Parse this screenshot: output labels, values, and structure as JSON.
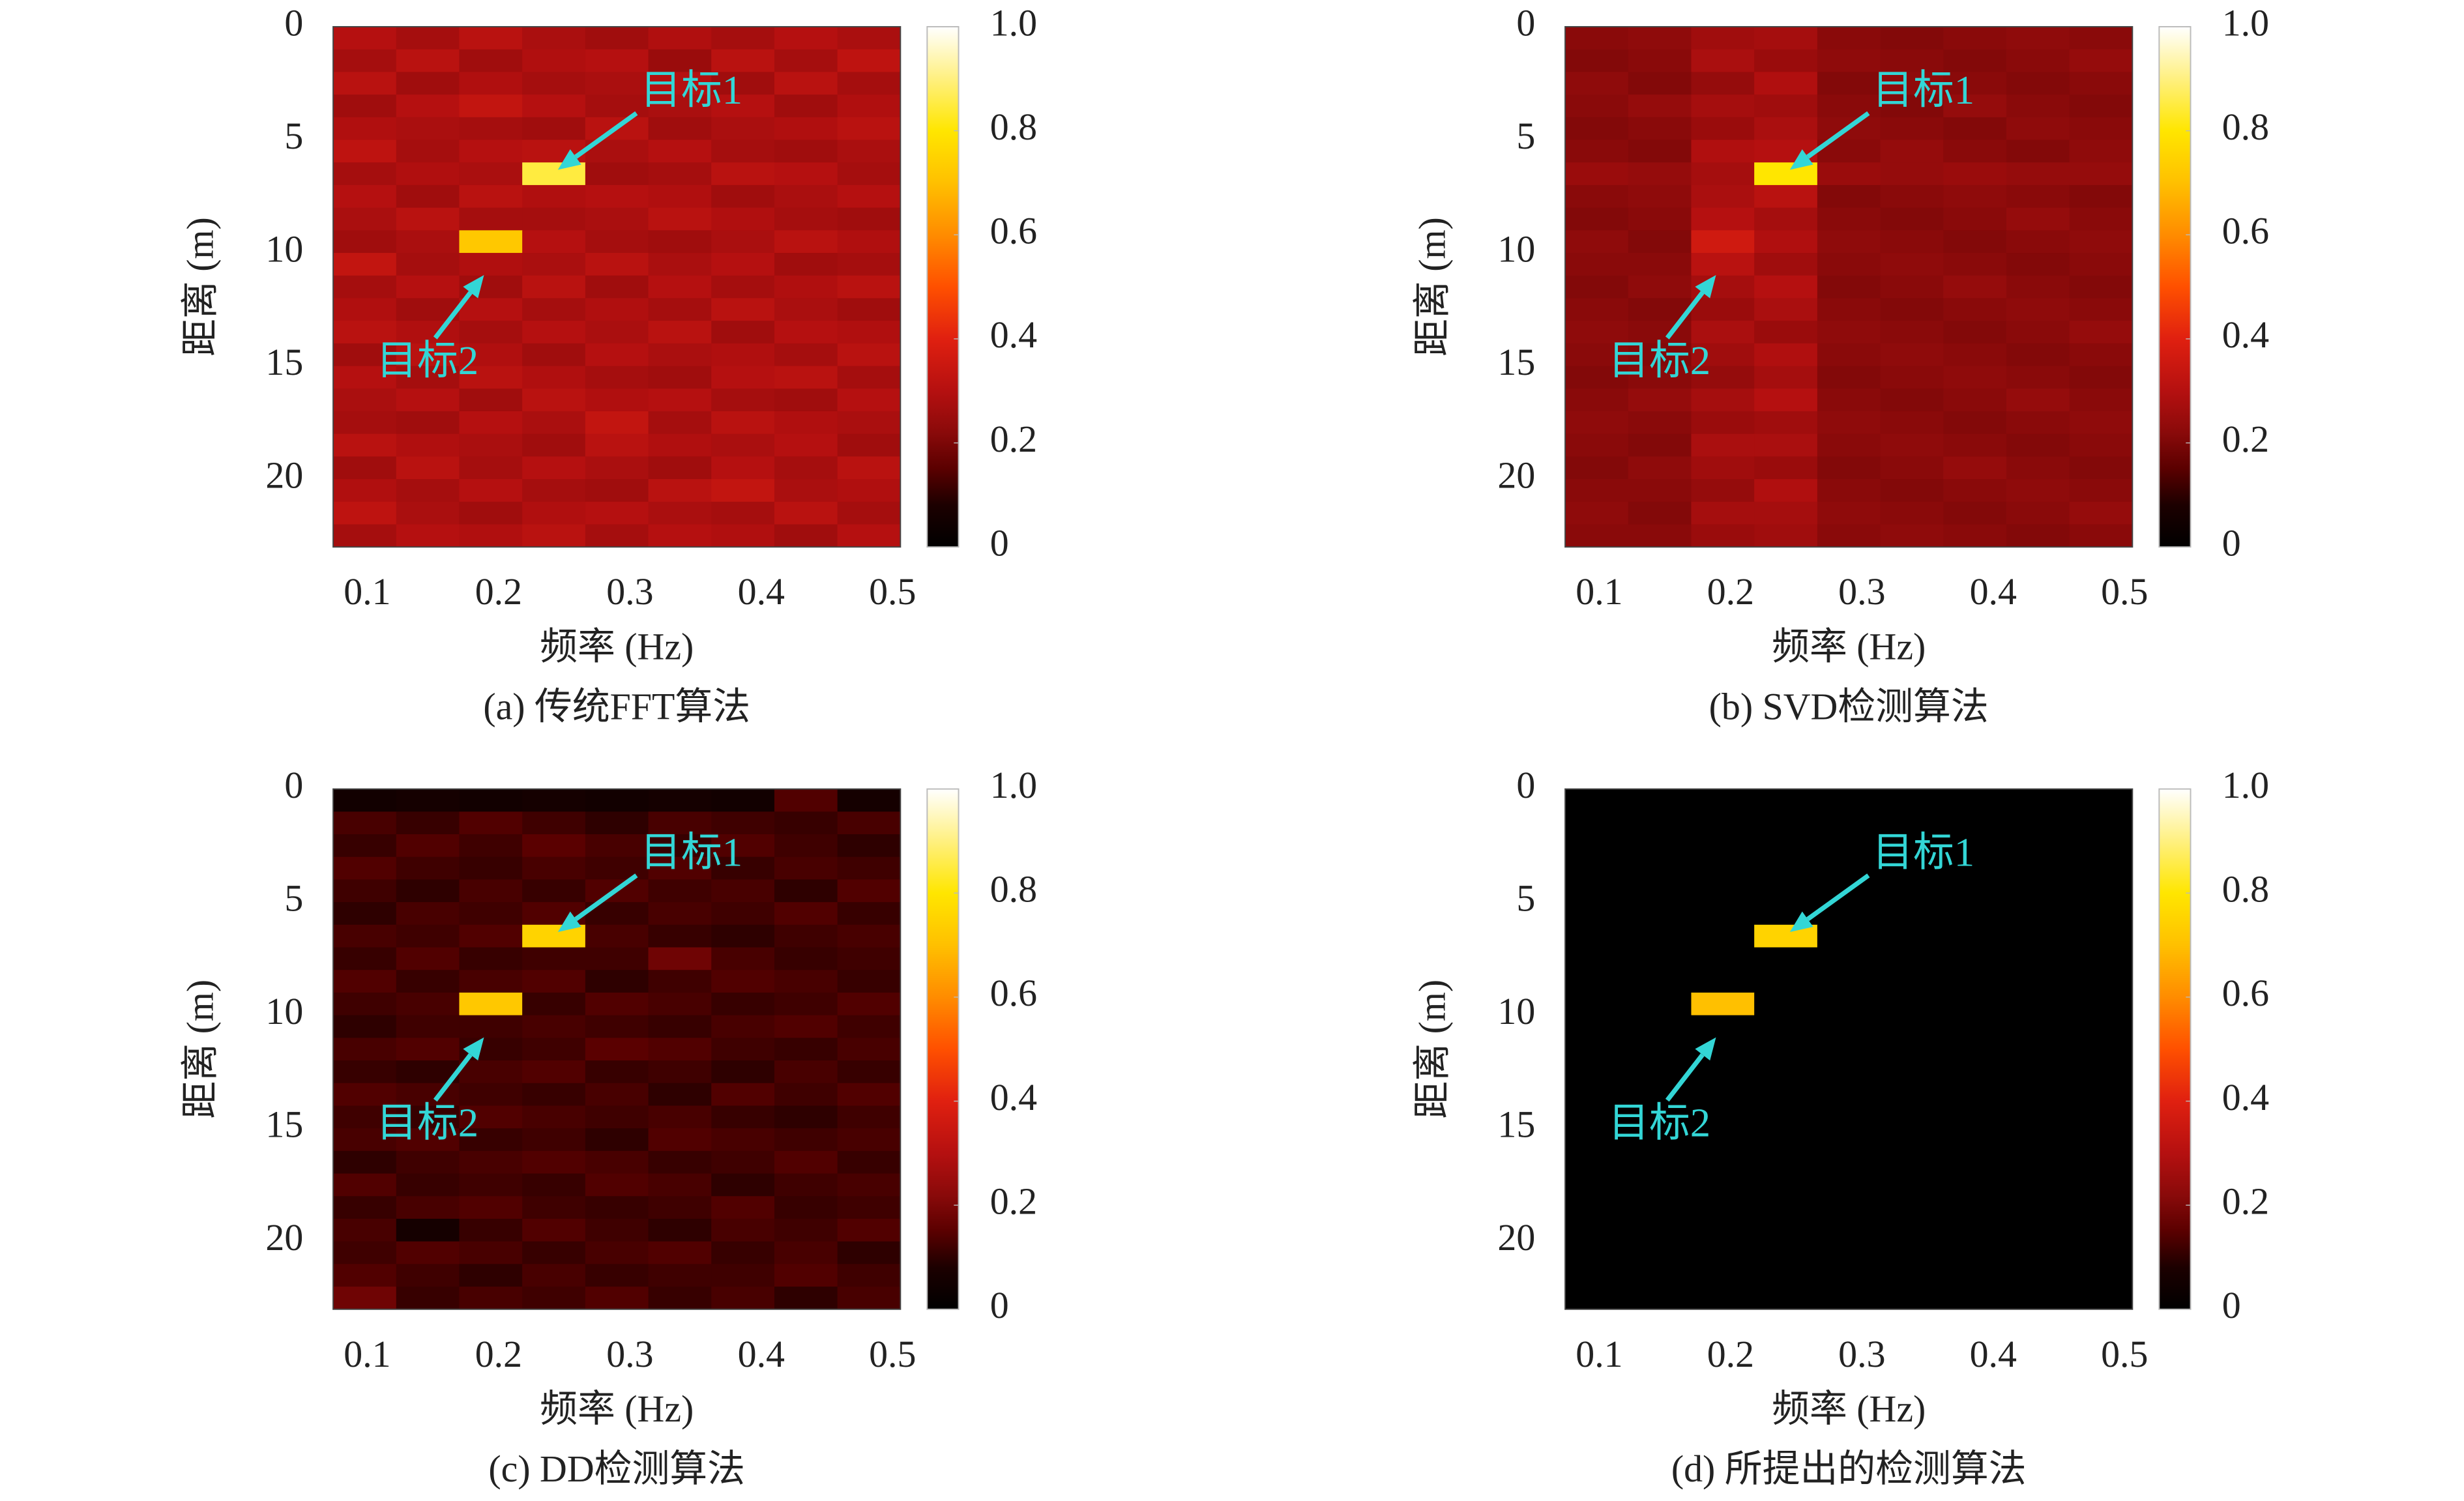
{
  "chart_data": [
    {
      "type": "heatmap",
      "caption": "(a) 传统FFT算法",
      "xlabel": "频率 (Hz)",
      "ylabel": "距离 (m)",
      "x": [
        0.098,
        0.146,
        0.194,
        0.242,
        0.29,
        0.338,
        0.386,
        0.434,
        0.482
      ],
      "y": [
        0.5,
        1.5,
        2.5,
        3.5,
        4.5,
        5.5,
        6.5,
        7.5,
        8.5,
        9.5,
        10.5,
        11.5,
        12.5,
        13.5,
        14.5,
        15.5,
        16.5,
        17.5,
        18.5,
        19.5,
        20.5,
        21.5,
        22.5
      ],
      "z": [
        [
          0.3,
          0.27,
          0.31,
          0.28,
          0.26,
          0.29,
          0.27,
          0.3,
          0.28
        ],
        [
          0.27,
          0.31,
          0.26,
          0.29,
          0.3,
          0.25,
          0.31,
          0.27,
          0.32
        ],
        [
          0.31,
          0.26,
          0.29,
          0.27,
          0.28,
          0.3,
          0.26,
          0.31,
          0.27
        ],
        [
          0.26,
          0.3,
          0.33,
          0.3,
          0.27,
          0.28,
          0.3,
          0.26,
          0.29
        ],
        [
          0.29,
          0.28,
          0.27,
          0.26,
          0.31,
          0.26,
          0.28,
          0.29,
          0.31
        ],
        [
          0.32,
          0.27,
          0.3,
          0.31,
          0.28,
          0.3,
          0.27,
          0.26,
          0.28
        ],
        [
          0.27,
          0.29,
          0.28,
          0.85,
          0.26,
          0.27,
          0.31,
          0.3,
          0.27
        ],
        [
          0.3,
          0.26,
          0.31,
          0.29,
          0.3,
          0.29,
          0.26,
          0.28,
          0.3
        ],
        [
          0.28,
          0.31,
          0.27,
          0.27,
          0.28,
          0.31,
          0.29,
          0.27,
          0.26
        ],
        [
          0.26,
          0.28,
          0.72,
          0.3,
          0.27,
          0.26,
          0.28,
          0.31,
          0.29
        ],
        [
          0.33,
          0.27,
          0.29,
          0.28,
          0.31,
          0.28,
          0.3,
          0.26,
          0.27
        ],
        [
          0.27,
          0.3,
          0.26,
          0.31,
          0.26,
          0.3,
          0.27,
          0.29,
          0.31
        ],
        [
          0.29,
          0.26,
          0.3,
          0.27,
          0.29,
          0.27,
          0.31,
          0.28,
          0.26
        ],
        [
          0.31,
          0.29,
          0.27,
          0.3,
          0.28,
          0.31,
          0.26,
          0.3,
          0.29
        ],
        [
          0.26,
          0.31,
          0.29,
          0.26,
          0.3,
          0.28,
          0.29,
          0.27,
          0.31
        ],
        [
          0.3,
          0.27,
          0.31,
          0.29,
          0.27,
          0.26,
          0.3,
          0.31,
          0.27
        ],
        [
          0.28,
          0.3,
          0.26,
          0.31,
          0.29,
          0.3,
          0.27,
          0.26,
          0.3
        ],
        [
          0.27,
          0.26,
          0.3,
          0.28,
          0.33,
          0.27,
          0.31,
          0.29,
          0.28
        ],
        [
          0.31,
          0.29,
          0.28,
          0.26,
          0.31,
          0.29,
          0.28,
          0.3,
          0.26
        ],
        [
          0.26,
          0.31,
          0.27,
          0.3,
          0.28,
          0.26,
          0.3,
          0.27,
          0.31
        ],
        [
          0.29,
          0.27,
          0.3,
          0.27,
          0.26,
          0.31,
          0.33,
          0.28,
          0.29
        ],
        [
          0.32,
          0.28,
          0.26,
          0.29,
          0.3,
          0.28,
          0.27,
          0.31,
          0.27
        ],
        [
          0.27,
          0.3,
          0.29,
          0.31,
          0.27,
          0.3,
          0.29,
          0.26,
          0.3
        ]
      ],
      "xlim": [
        0.074,
        0.506
      ],
      "ylim": [
        0,
        23
      ],
      "y_inverted": true,
      "xticks": [
        0.1,
        0.2,
        0.3,
        0.4,
        0.5
      ],
      "yticks": [
        0,
        5,
        10,
        15,
        20
      ],
      "colormap": "hot",
      "clim": [
        0,
        1
      ],
      "cticks": [
        0,
        0.2,
        0.4,
        0.6,
        0.8,
        {
          "value": 1,
          "label": "1.0"
        }
      ],
      "annotations": [
        {
          "text": "目标1"
        },
        {
          "text": "目标2"
        }
      ],
      "annotation_color": "#33d6d6"
    },
    {
      "type": "heatmap",
      "caption": "(b) SVD检测算法",
      "xlabel": "频率 (Hz)",
      "ylabel": "距离 (m)",
      "x": [
        0.098,
        0.146,
        0.194,
        0.242,
        0.29,
        0.338,
        0.386,
        0.434,
        0.482
      ],
      "y": [
        0.5,
        1.5,
        2.5,
        3.5,
        4.5,
        5.5,
        6.5,
        7.5,
        8.5,
        9.5,
        10.5,
        11.5,
        12.5,
        13.5,
        14.5,
        15.5,
        16.5,
        17.5,
        18.5,
        19.5,
        20.5,
        21.5,
        22.5
      ],
      "z": [
        [
          0.22,
          0.23,
          0.26,
          0.27,
          0.22,
          0.21,
          0.22,
          0.23,
          0.22
        ],
        [
          0.21,
          0.22,
          0.28,
          0.25,
          0.23,
          0.22,
          0.21,
          0.22,
          0.24
        ],
        [
          0.23,
          0.21,
          0.24,
          0.29,
          0.21,
          0.23,
          0.22,
          0.21,
          0.22
        ],
        [
          0.22,
          0.24,
          0.27,
          0.26,
          0.22,
          0.21,
          0.24,
          0.22,
          0.21
        ],
        [
          0.21,
          0.22,
          0.25,
          0.28,
          0.23,
          0.22,
          0.21,
          0.23,
          0.22
        ],
        [
          0.22,
          0.21,
          0.29,
          0.3,
          0.22,
          0.24,
          0.22,
          0.21,
          0.23
        ],
        [
          0.25,
          0.24,
          0.27,
          0.8,
          0.25,
          0.24,
          0.25,
          0.24,
          0.24
        ],
        [
          0.22,
          0.23,
          0.28,
          0.31,
          0.21,
          0.22,
          0.23,
          0.22,
          0.21
        ],
        [
          0.21,
          0.22,
          0.3,
          0.27,
          0.22,
          0.21,
          0.22,
          0.24,
          0.22
        ],
        [
          0.23,
          0.21,
          0.36,
          0.29,
          0.23,
          0.22,
          0.21,
          0.22,
          0.23
        ],
        [
          0.22,
          0.22,
          0.31,
          0.26,
          0.22,
          0.23,
          0.22,
          0.21,
          0.22
        ],
        [
          0.21,
          0.23,
          0.27,
          0.3,
          0.21,
          0.22,
          0.24,
          0.22,
          0.21
        ],
        [
          0.22,
          0.21,
          0.25,
          0.28,
          0.22,
          0.21,
          0.22,
          0.23,
          0.22
        ],
        [
          0.23,
          0.22,
          0.28,
          0.25,
          0.23,
          0.22,
          0.21,
          0.22,
          0.24
        ],
        [
          0.22,
          0.21,
          0.26,
          0.29,
          0.22,
          0.23,
          0.22,
          0.21,
          0.22
        ],
        [
          0.21,
          0.22,
          0.24,
          0.27,
          0.21,
          0.22,
          0.23,
          0.22,
          0.21
        ],
        [
          0.22,
          0.24,
          0.27,
          0.3,
          0.22,
          0.21,
          0.22,
          0.24,
          0.22
        ],
        [
          0.23,
          0.22,
          0.25,
          0.26,
          0.23,
          0.22,
          0.21,
          0.22,
          0.23
        ],
        [
          0.22,
          0.21,
          0.28,
          0.28,
          0.22,
          0.23,
          0.22,
          0.21,
          0.22
        ],
        [
          0.21,
          0.23,
          0.26,
          0.25,
          0.21,
          0.22,
          0.24,
          0.22,
          0.21
        ],
        [
          0.22,
          0.22,
          0.24,
          0.29,
          0.22,
          0.21,
          0.22,
          0.23,
          0.22
        ],
        [
          0.23,
          0.21,
          0.27,
          0.27,
          0.23,
          0.22,
          0.21,
          0.22,
          0.24
        ],
        [
          0.22,
          0.22,
          0.25,
          0.26,
          0.22,
          0.23,
          0.22,
          0.21,
          0.22
        ]
      ],
      "xlim": [
        0.074,
        0.506
      ],
      "ylim": [
        0,
        23
      ],
      "y_inverted": true,
      "xticks": [
        0.1,
        0.2,
        0.3,
        0.4,
        0.5
      ],
      "yticks": [
        0,
        5,
        10,
        15,
        20
      ],
      "colormap": "hot",
      "clim": [
        0,
        1
      ],
      "cticks": [
        0,
        0.2,
        0.4,
        0.6,
        0.8,
        {
          "value": 1,
          "label": "1.0"
        }
      ],
      "annotations": [
        {
          "text": "目标1"
        },
        {
          "text": "目标2"
        }
      ],
      "annotation_color": "#33d6d6"
    },
    {
      "type": "heatmap",
      "caption": "(c) DD检测算法",
      "xlabel": "频率 (Hz)",
      "ylabel": "距离 (m)",
      "x": [
        0.098,
        0.146,
        0.194,
        0.242,
        0.29,
        0.338,
        0.386,
        0.434,
        0.482
      ],
      "y": [
        0.5,
        1.5,
        2.5,
        3.5,
        4.5,
        5.5,
        6.5,
        7.5,
        8.5,
        9.5,
        10.5,
        11.5,
        12.5,
        13.5,
        14.5,
        15.5,
        16.5,
        17.5,
        18.5,
        19.5,
        20.5,
        21.5,
        22.5
      ],
      "z": [
        [
          0.05,
          0.06,
          0.05,
          0.06,
          0.05,
          0.06,
          0.05,
          0.14,
          0.06
        ],
        [
          0.13,
          0.11,
          0.14,
          0.12,
          0.1,
          0.13,
          0.12,
          0.11,
          0.13
        ],
        [
          0.11,
          0.14,
          0.12,
          0.15,
          0.13,
          0.11,
          0.14,
          0.12,
          0.1
        ],
        [
          0.14,
          0.12,
          0.11,
          0.13,
          0.12,
          0.14,
          0.11,
          0.13,
          0.12
        ],
        [
          0.12,
          0.1,
          0.13,
          0.11,
          0.14,
          0.12,
          0.13,
          0.1,
          0.14
        ],
        [
          0.1,
          0.13,
          0.12,
          0.14,
          0.11,
          0.13,
          0.12,
          0.14,
          0.11
        ],
        [
          0.13,
          0.12,
          0.14,
          0.75,
          0.13,
          0.11,
          0.1,
          0.12,
          0.13
        ],
        [
          0.11,
          0.14,
          0.11,
          0.12,
          0.12,
          0.18,
          0.13,
          0.11,
          0.12
        ],
        [
          0.14,
          0.11,
          0.13,
          0.14,
          0.1,
          0.12,
          0.14,
          0.13,
          0.11
        ],
        [
          0.12,
          0.13,
          0.72,
          0.11,
          0.14,
          0.13,
          0.11,
          0.12,
          0.14
        ],
        [
          0.1,
          0.12,
          0.12,
          0.13,
          0.12,
          0.11,
          0.13,
          0.14,
          0.12
        ],
        [
          0.13,
          0.14,
          0.11,
          0.12,
          0.15,
          0.14,
          0.12,
          0.11,
          0.13
        ],
        [
          0.11,
          0.1,
          0.13,
          0.14,
          0.11,
          0.12,
          0.1,
          0.13,
          0.11
        ],
        [
          0.14,
          0.13,
          0.12,
          0.11,
          0.13,
          0.1,
          0.14,
          0.12,
          0.14
        ],
        [
          0.12,
          0.11,
          0.14,
          0.13,
          0.12,
          0.13,
          0.11,
          0.1,
          0.12
        ],
        [
          0.13,
          0.14,
          0.11,
          0.12,
          0.1,
          0.14,
          0.13,
          0.12,
          0.13
        ],
        [
          0.1,
          0.12,
          0.13,
          0.14,
          0.13,
          0.11,
          0.12,
          0.14,
          0.11
        ],
        [
          0.14,
          0.11,
          0.12,
          0.11,
          0.14,
          0.13,
          0.1,
          0.12,
          0.13
        ],
        [
          0.11,
          0.13,
          0.14,
          0.12,
          0.11,
          0.12,
          0.14,
          0.11,
          0.12
        ],
        [
          0.13,
          0.06,
          0.11,
          0.14,
          0.12,
          0.1,
          0.13,
          0.12,
          0.14
        ],
        [
          0.12,
          0.14,
          0.13,
          0.11,
          0.13,
          0.14,
          0.11,
          0.13,
          0.1
        ],
        [
          0.14,
          0.12,
          0.1,
          0.13,
          0.11,
          0.12,
          0.12,
          0.14,
          0.12
        ],
        [
          0.18,
          0.11,
          0.13,
          0.12,
          0.14,
          0.11,
          0.13,
          0.1,
          0.13
        ]
      ],
      "xlim": [
        0.074,
        0.506
      ],
      "ylim": [
        0,
        23
      ],
      "y_inverted": true,
      "xticks": [
        0.1,
        0.2,
        0.3,
        0.4,
        0.5
      ],
      "yticks": [
        0,
        5,
        10,
        15,
        20
      ],
      "colormap": "hot",
      "clim": [
        0,
        1
      ],
      "cticks": [
        0,
        0.2,
        0.4,
        0.6,
        0.8,
        {
          "value": 1,
          "label": "1.0"
        }
      ],
      "annotations": [
        {
          "text": "目标1"
        },
        {
          "text": "目标2"
        }
      ],
      "annotation_color": "#33d6d6"
    },
    {
      "type": "heatmap",
      "caption": "(d) 所提出的检测算法",
      "xlabel": "频率 (Hz)",
      "ylabel": "距离 (m)",
      "x": [
        0.098,
        0.146,
        0.194,
        0.242,
        0.29,
        0.338,
        0.386,
        0.434,
        0.482
      ],
      "y": [
        0.5,
        1.5,
        2.5,
        3.5,
        4.5,
        5.5,
        6.5,
        7.5,
        8.5,
        9.5,
        10.5,
        11.5,
        12.5,
        13.5,
        14.5,
        15.5,
        16.5,
        17.5,
        18.5,
        19.5,
        20.5,
        21.5,
        22.5
      ],
      "z": [
        [
          0,
          0,
          0,
          0,
          0,
          0,
          0,
          0,
          0
        ],
        [
          0,
          0,
          0,
          0,
          0,
          0,
          0,
          0,
          0
        ],
        [
          0,
          0,
          0,
          0,
          0,
          0,
          0,
          0,
          0
        ],
        [
          0,
          0,
          0,
          0,
          0,
          0,
          0,
          0,
          0
        ],
        [
          0,
          0,
          0,
          0,
          0,
          0,
          0,
          0,
          0
        ],
        [
          0,
          0,
          0,
          0,
          0,
          0,
          0,
          0,
          0
        ],
        [
          0,
          0,
          0,
          0.75,
          0,
          0,
          0,
          0,
          0
        ],
        [
          0,
          0,
          0,
          0,
          0,
          0,
          0,
          0,
          0
        ],
        [
          0,
          0,
          0,
          0,
          0,
          0,
          0,
          0,
          0
        ],
        [
          0,
          0,
          0.7,
          0,
          0,
          0,
          0,
          0,
          0
        ],
        [
          0,
          0,
          0,
          0,
          0,
          0,
          0,
          0,
          0
        ],
        [
          0,
          0,
          0,
          0,
          0,
          0,
          0,
          0,
          0
        ],
        [
          0,
          0,
          0,
          0,
          0,
          0,
          0,
          0,
          0
        ],
        [
          0,
          0,
          0,
          0,
          0,
          0,
          0,
          0,
          0
        ],
        [
          0,
          0,
          0,
          0,
          0,
          0,
          0,
          0,
          0
        ],
        [
          0,
          0,
          0,
          0,
          0,
          0,
          0,
          0,
          0
        ],
        [
          0,
          0,
          0,
          0,
          0,
          0,
          0,
          0,
          0
        ],
        [
          0,
          0,
          0,
          0,
          0,
          0,
          0,
          0,
          0
        ],
        [
          0,
          0,
          0,
          0,
          0,
          0,
          0,
          0,
          0
        ],
        [
          0,
          0,
          0,
          0,
          0,
          0,
          0,
          0,
          0
        ],
        [
          0,
          0,
          0,
          0,
          0,
          0,
          0,
          0,
          0
        ],
        [
          0,
          0,
          0,
          0,
          0,
          0,
          0,
          0,
          0
        ],
        [
          0,
          0,
          0,
          0,
          0,
          0,
          0,
          0,
          0
        ]
      ],
      "xlim": [
        0.074,
        0.506
      ],
      "ylim": [
        0,
        23
      ],
      "y_inverted": true,
      "xticks": [
        0.1,
        0.2,
        0.3,
        0.4,
        0.5
      ],
      "yticks": [
        0,
        5,
        10,
        15,
        20
      ],
      "colormap": "hot",
      "clim": [
        0,
        1
      ],
      "cticks": [
        0,
        0.2,
        0.4,
        0.6,
        0.8,
        {
          "value": 1,
          "label": "1.0"
        }
      ],
      "annotations": [
        {
          "text": "目标1"
        },
        {
          "text": "目标2"
        }
      ],
      "annotation_color": "#33d6d6"
    }
  ]
}
